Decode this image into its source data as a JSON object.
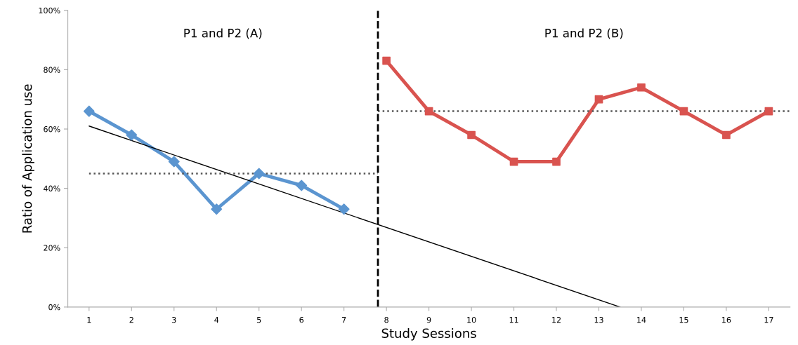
{
  "chart_data": {
    "type": "line",
    "xlabel": "Study Sessions",
    "ylabel": "Ratio of Application use",
    "xlim": [
      0.5,
      17.5
    ],
    "xticks": [
      1,
      2,
      3,
      4,
      5,
      6,
      7,
      8,
      9,
      10,
      11,
      12,
      13,
      14,
      15,
      16,
      17
    ],
    "ylim": [
      0,
      100
    ],
    "yticks": [
      {
        "value": 0,
        "label": "0%"
      },
      {
        "value": 20,
        "label": "20%"
      },
      {
        "value": 40,
        "label": "40%"
      },
      {
        "value": 60,
        "label": "60%"
      },
      {
        "value": 80,
        "label": "80%"
      },
      {
        "value": 100,
        "label": "100%"
      }
    ],
    "grid": false,
    "series": [
      {
        "color": "#5b95d0",
        "marker": "diamond",
        "line_style": "solid",
        "x": [
          1,
          2,
          3,
          4,
          5,
          6,
          7
        ],
        "values": [
          66,
          58,
          49,
          33,
          45,
          41,
          33
        ]
      },
      {
        "color": "#d9534f",
        "marker": "square",
        "line_style": "solid",
        "x": [
          8,
          9,
          10,
          11,
          12,
          13,
          14,
          15,
          16,
          17
        ],
        "values": [
          83,
          66,
          58,
          49,
          49,
          70,
          74,
          66,
          58,
          66
        ]
      },
      {
        "color": "#000000",
        "marker": "none",
        "line_style": "solid",
        "x": [
          1,
          13.5
        ],
        "values": [
          61,
          0
        ]
      },
      {
        "color": "#555555",
        "marker": "none",
        "line_style": "dotted",
        "x": [
          1,
          7.8
        ],
        "values": [
          45,
          45
        ]
      },
      {
        "color": "#555555",
        "marker": "none",
        "line_style": "dotted",
        "x": [
          7.8,
          17.5
        ],
        "values": [
          66,
          66
        ]
      }
    ],
    "ref_lines": [
      {
        "axis": "x",
        "value": 7.8,
        "color": "#000000",
        "line_style": "dashed"
      }
    ],
    "annotations": [
      "P1 and P2 (A)",
      "P1 and P2 (B)"
    ]
  }
}
